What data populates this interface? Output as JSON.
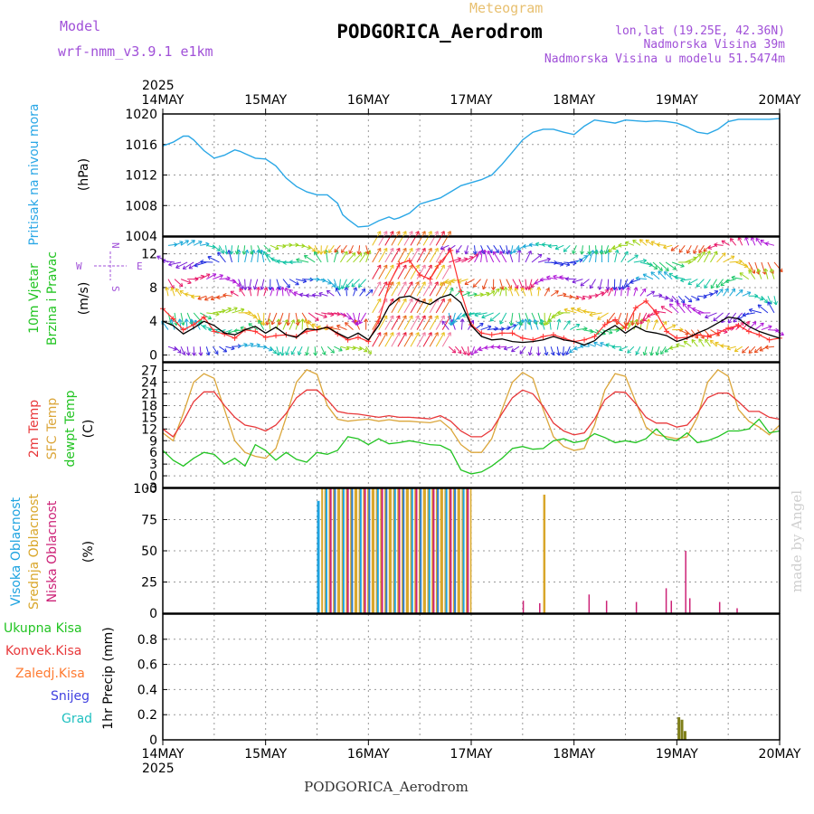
{
  "header": {
    "model_label": "Model",
    "model_name": "wrf-nmm_v3.9.1 e1km",
    "meteogram_label": "Meteogram",
    "station": "PODGORICA_Aerodrom",
    "lonlat": "lon,lat (19.25E, 42.36N)",
    "elevation": "Nadmorska Visina 39m",
    "model_elevation": "Nadmorska Visina u modelu 51.5474m",
    "footer_station": "PODGORICA_Aerodrom",
    "credit": "made by Angel",
    "year_top": "2025",
    "year_bottom": "2025"
  },
  "colors": {
    "pressure": "#2aa7e6",
    "wind_speed": "#000000",
    "wind_gust": "#ff3030",
    "temp_2m": "#e8383a",
    "temp_sfc": "#dba63a",
    "dewpoint": "#22c422",
    "cloud_high": "#1ea3e0",
    "cloud_mid": "#d9a62a",
    "cloud_low": "#cc2277",
    "precip": "#7f7f1a",
    "purple_text": "#a050d8",
    "gold_text": "#e8c070"
  },
  "chart_data": [
    {
      "type": "line",
      "panel": "pressure",
      "ylabel": "Pritisak na nivou mora",
      "unit": "(hPa)",
      "ylim": [
        1004,
        1020
      ],
      "yticks": [
        "1004",
        "1008",
        "1012",
        "1016",
        "1020"
      ],
      "xticks": [
        "14MAY",
        "15MAY",
        "16MAY",
        "17MAY",
        "18MAY",
        "19MAY",
        "20MAY"
      ],
      "grid": true,
      "x_days": [
        0,
        0.1,
        0.2,
        0.25,
        0.3,
        0.4,
        0.5,
        0.6,
        0.7,
        0.75,
        0.8,
        0.9,
        1.0,
        1.1,
        1.2,
        1.3,
        1.4,
        1.5,
        1.6,
        1.7,
        1.75,
        1.8,
        1.9,
        2.0,
        2.1,
        2.2,
        2.25,
        2.3,
        2.4,
        2.5,
        2.6,
        2.7,
        2.8,
        2.9,
        3.0,
        3.1,
        3.2,
        3.3,
        3.4,
        3.5,
        3.6,
        3.7,
        3.8,
        3.9,
        4.0,
        4.1,
        4.2,
        4.3,
        4.4,
        4.5,
        4.6,
        4.7,
        4.8,
        4.9,
        5.0,
        5.1,
        5.2,
        5.3,
        5.4,
        5.5,
        5.6,
        5.7,
        5.8,
        5.9,
        6.0
      ],
      "values": [
        1015.8,
        1016.3,
        1017.1,
        1017.1,
        1016.6,
        1015.2,
        1014.2,
        1014.6,
        1015.3,
        1015.1,
        1014.8,
        1014.2,
        1014.1,
        1013.2,
        1011.6,
        1010.5,
        1009.8,
        1009.4,
        1009.4,
        1008.3,
        1006.8,
        1006.2,
        1005.2,
        1005.3,
        1006.0,
        1006.5,
        1006.2,
        1006.4,
        1007.0,
        1008.2,
        1008.6,
        1009.0,
        1009.8,
        1010.6,
        1011.0,
        1011.4,
        1012.0,
        1013.4,
        1015.0,
        1016.6,
        1017.6,
        1018.0,
        1018.0,
        1017.6,
        1017.3,
        1018.4,
        1019.2,
        1019.0,
        1018.8,
        1019.2,
        1019.1,
        1019.0,
        1019.1,
        1019.0,
        1018.8,
        1018.3,
        1017.6,
        1017.4,
        1018.0,
        1019.0,
        1019.3,
        1019.3,
        1019.3,
        1019.3,
        1019.4
      ]
    },
    {
      "type": "line",
      "panel": "wind",
      "ylabel": "10m Vjetar",
      "ylabel2": "Brzina i Pravac",
      "unit": "(m/s)",
      "compass_n": "N",
      "compass_s": "S",
      "compass_e": "E",
      "compass_w": "W",
      "ylim": [
        -0.8,
        14
      ],
      "yticks": [
        "0",
        "4",
        "8",
        "12"
      ],
      "grid": true,
      "x_days": [
        0,
        0.1,
        0.2,
        0.3,
        0.4,
        0.5,
        0.6,
        0.7,
        0.8,
        0.9,
        1.0,
        1.1,
        1.2,
        1.3,
        1.4,
        1.5,
        1.6,
        1.7,
        1.8,
        1.9,
        2.0,
        2.1,
        2.2,
        2.3,
        2.4,
        2.5,
        2.6,
        2.7,
        2.8,
        2.9,
        3.0,
        3.1,
        3.2,
        3.3,
        3.4,
        3.5,
        3.6,
        3.7,
        3.8,
        3.9,
        4.0,
        4.1,
        4.2,
        4.3,
        4.4,
        4.5,
        4.6,
        4.7,
        4.8,
        4.9,
        5.0,
        5.1,
        5.2,
        5.3,
        5.4,
        5.5,
        5.6,
        5.7,
        5.8,
        5.9,
        6.0
      ],
      "series": [
        {
          "key": "speed",
          "values": [
            4.0,
            3.5,
            2.5,
            3.2,
            4.0,
            3.5,
            2.6,
            2.4,
            3.0,
            3.4,
            2.6,
            3.3,
            2.4,
            2.1,
            3.1,
            3.0,
            3.3,
            2.6,
            2.0,
            2.6,
            1.8,
            3.5,
            5.8,
            6.8,
            7.0,
            6.4,
            6.0,
            6.8,
            7.2,
            6.2,
            3.5,
            2.2,
            1.8,
            1.9,
            1.6,
            1.5,
            1.6,
            1.8,
            2.2,
            1.8,
            1.6,
            1.2,
            1.7,
            2.8,
            3.5,
            2.6,
            3.4,
            2.8,
            2.6,
            2.3,
            1.6,
            2.0,
            2.6,
            3.1,
            3.8,
            4.5,
            4.3,
            3.4,
            2.8,
            2.4,
            2.0
          ]
        },
        {
          "key": "gust",
          "values": [
            5.5,
            4.3,
            3.0,
            3.6,
            4.5,
            2.8,
            2.5,
            2.0,
            3.0,
            2.8,
            2.1,
            2.3,
            2.4,
            2.2,
            2.8,
            3.0,
            3.3,
            2.5,
            1.8,
            2.1,
            1.6,
            4.0,
            8.4,
            10.8,
            11.2,
            9.5,
            9.0,
            11.0,
            12.4,
            7.5,
            3.6,
            2.6,
            2.4,
            2.6,
            2.6,
            2.0,
            1.8,
            2.2,
            2.4,
            2.0,
            1.6,
            1.8,
            2.2,
            3.6,
            4.2,
            3.2,
            5.6,
            6.4,
            5.0,
            2.8,
            2.0,
            2.1,
            2.4,
            2.2,
            2.6,
            3.2,
            3.5,
            2.8,
            2.4,
            1.8,
            2.0
          ]
        }
      ]
    },
    {
      "type": "line",
      "panel": "temperature",
      "ylabels": [
        "2m Temp",
        "SFC Temp",
        "dewpt Temp"
      ],
      "unit": "(C)",
      "ylim": [
        -3,
        29
      ],
      "yticks": [
        "-3",
        "0",
        "3",
        "6",
        "9",
        "12",
        "15",
        "18",
        "21",
        "24",
        "27"
      ],
      "grid": true,
      "x_days": [
        0,
        0.1,
        0.2,
        0.3,
        0.4,
        0.5,
        0.6,
        0.7,
        0.8,
        0.9,
        1.0,
        1.1,
        1.2,
        1.3,
        1.4,
        1.5,
        1.6,
        1.7,
        1.8,
        1.9,
        2.0,
        2.1,
        2.2,
        2.3,
        2.4,
        2.5,
        2.6,
        2.7,
        2.8,
        2.9,
        3.0,
        3.1,
        3.2,
        3.3,
        3.4,
        3.5,
        3.6,
        3.7,
        3.8,
        3.9,
        4.0,
        4.1,
        4.2,
        4.3,
        4.4,
        4.5,
        4.6,
        4.7,
        4.8,
        4.9,
        5.0,
        5.1,
        5.2,
        5.3,
        5.4,
        5.5,
        5.6,
        5.7,
        5.8,
        5.9,
        6.0
      ],
      "series": [
        {
          "key": "t2m",
          "values": [
            12,
            10,
            14,
            19,
            21.5,
            21.5,
            18,
            15,
            13,
            12.5,
            11.5,
            13,
            16,
            20,
            22,
            22,
            19.5,
            16.5,
            16,
            15.8,
            15.4,
            15.0,
            15.4,
            15.0,
            15.0,
            14.8,
            14.6,
            15.4,
            14.0,
            11.5,
            10.0,
            10.0,
            11.8,
            16,
            20,
            22,
            21,
            17.8,
            13.5,
            11.5,
            10.5,
            11,
            14.5,
            19.5,
            21.5,
            21.4,
            18.5,
            15,
            13.5,
            13.5,
            12.5,
            13,
            16,
            20,
            21.2,
            21.2,
            19,
            16.5,
            16.5,
            15,
            14.5
          ]
        },
        {
          "key": "tsfc",
          "values": [
            11,
            9,
            16,
            24,
            26.2,
            25,
            17,
            9,
            6,
            5,
            4.5,
            7,
            15,
            24,
            27.2,
            26,
            18,
            14.5,
            14,
            14.3,
            14.5,
            14.0,
            14.4,
            14.0,
            14.0,
            13.8,
            13.6,
            14.2,
            12.0,
            8.0,
            6.0,
            6.0,
            9.5,
            17,
            24,
            26.5,
            25,
            17,
            10,
            7.5,
            6.5,
            7,
            13,
            22,
            26.2,
            25.5,
            19,
            12.5,
            10.5,
            10,
            9.5,
            10,
            15,
            24,
            27.2,
            25.5,
            17,
            14,
            12.5,
            10.5,
            13
          ]
        },
        {
          "key": "dew",
          "values": [
            6.5,
            4,
            2.5,
            4.5,
            6,
            5.5,
            3,
            4.5,
            2.5,
            8,
            6.5,
            4,
            6,
            4.2,
            3.5,
            6,
            5.5,
            6.5,
            10,
            9.5,
            8,
            9.5,
            8.2,
            8.5,
            9,
            8.5,
            8,
            7.8,
            6.5,
            1.5,
            0.5,
            1,
            2.5,
            4.5,
            7,
            7.5,
            6.8,
            7,
            9,
            9.5,
            8.5,
            9,
            10.8,
            9.8,
            8.5,
            9,
            8.5,
            9.5,
            12,
            9.5,
            9,
            11,
            8.5,
            9,
            10,
            11.5,
            11.5,
            12,
            14.5,
            11,
            11.5
          ]
        }
      ]
    },
    {
      "type": "bar",
      "panel": "clouds",
      "ylabels": [
        "Visoka Oblacnost",
        "Srednja Oblacnost",
        "Niska Oblacnost"
      ],
      "unit": "(%)",
      "ylim": [
        0,
        100
      ],
      "yticks": [
        "0",
        "25",
        "50",
        "75",
        "100"
      ],
      "grid": true,
      "bar_pitch_days": 0.0417,
      "bar_start_day": 1.55,
      "bar_end_day": 3.0,
      "bars_full_value": 100,
      "high_cloud": [
        {
          "x": 1.5,
          "value": 90
        }
      ],
      "mid_cloud": [
        {
          "x": 3.7,
          "value": 95
        }
      ],
      "low_cloud": [
        {
          "x": 3.5,
          "value": 10
        },
        {
          "x": 3.66,
          "value": 8
        },
        {
          "x": 4.14,
          "value": 15
        },
        {
          "x": 4.31,
          "value": 10
        },
        {
          "x": 4.6,
          "value": 9
        },
        {
          "x": 4.89,
          "value": 20
        },
        {
          "x": 4.94,
          "value": 10
        },
        {
          "x": 5.08,
          "value": 50
        },
        {
          "x": 5.12,
          "value": 12
        },
        {
          "x": 5.41,
          "value": 9
        },
        {
          "x": 5.58,
          "value": 4
        }
      ]
    },
    {
      "type": "bar",
      "panel": "precip",
      "ylabels": [
        "Ukupna Kisa",
        "Konvek.Kisa",
        "Zaledj.Kisa",
        "Snijeg",
        "Grad"
      ],
      "ylabel_unit": "1hr Precip (mm)",
      "ylim": [
        0,
        1
      ],
      "yticks": [
        "0",
        "0.2",
        "0.4",
        "0.6",
        "0.8"
      ],
      "grid": true,
      "bars": [
        {
          "x": 5.02,
          "value": 0.18
        },
        {
          "x": 5.05,
          "value": 0.16
        },
        {
          "x": 5.08,
          "value": 0.07
        }
      ]
    }
  ]
}
